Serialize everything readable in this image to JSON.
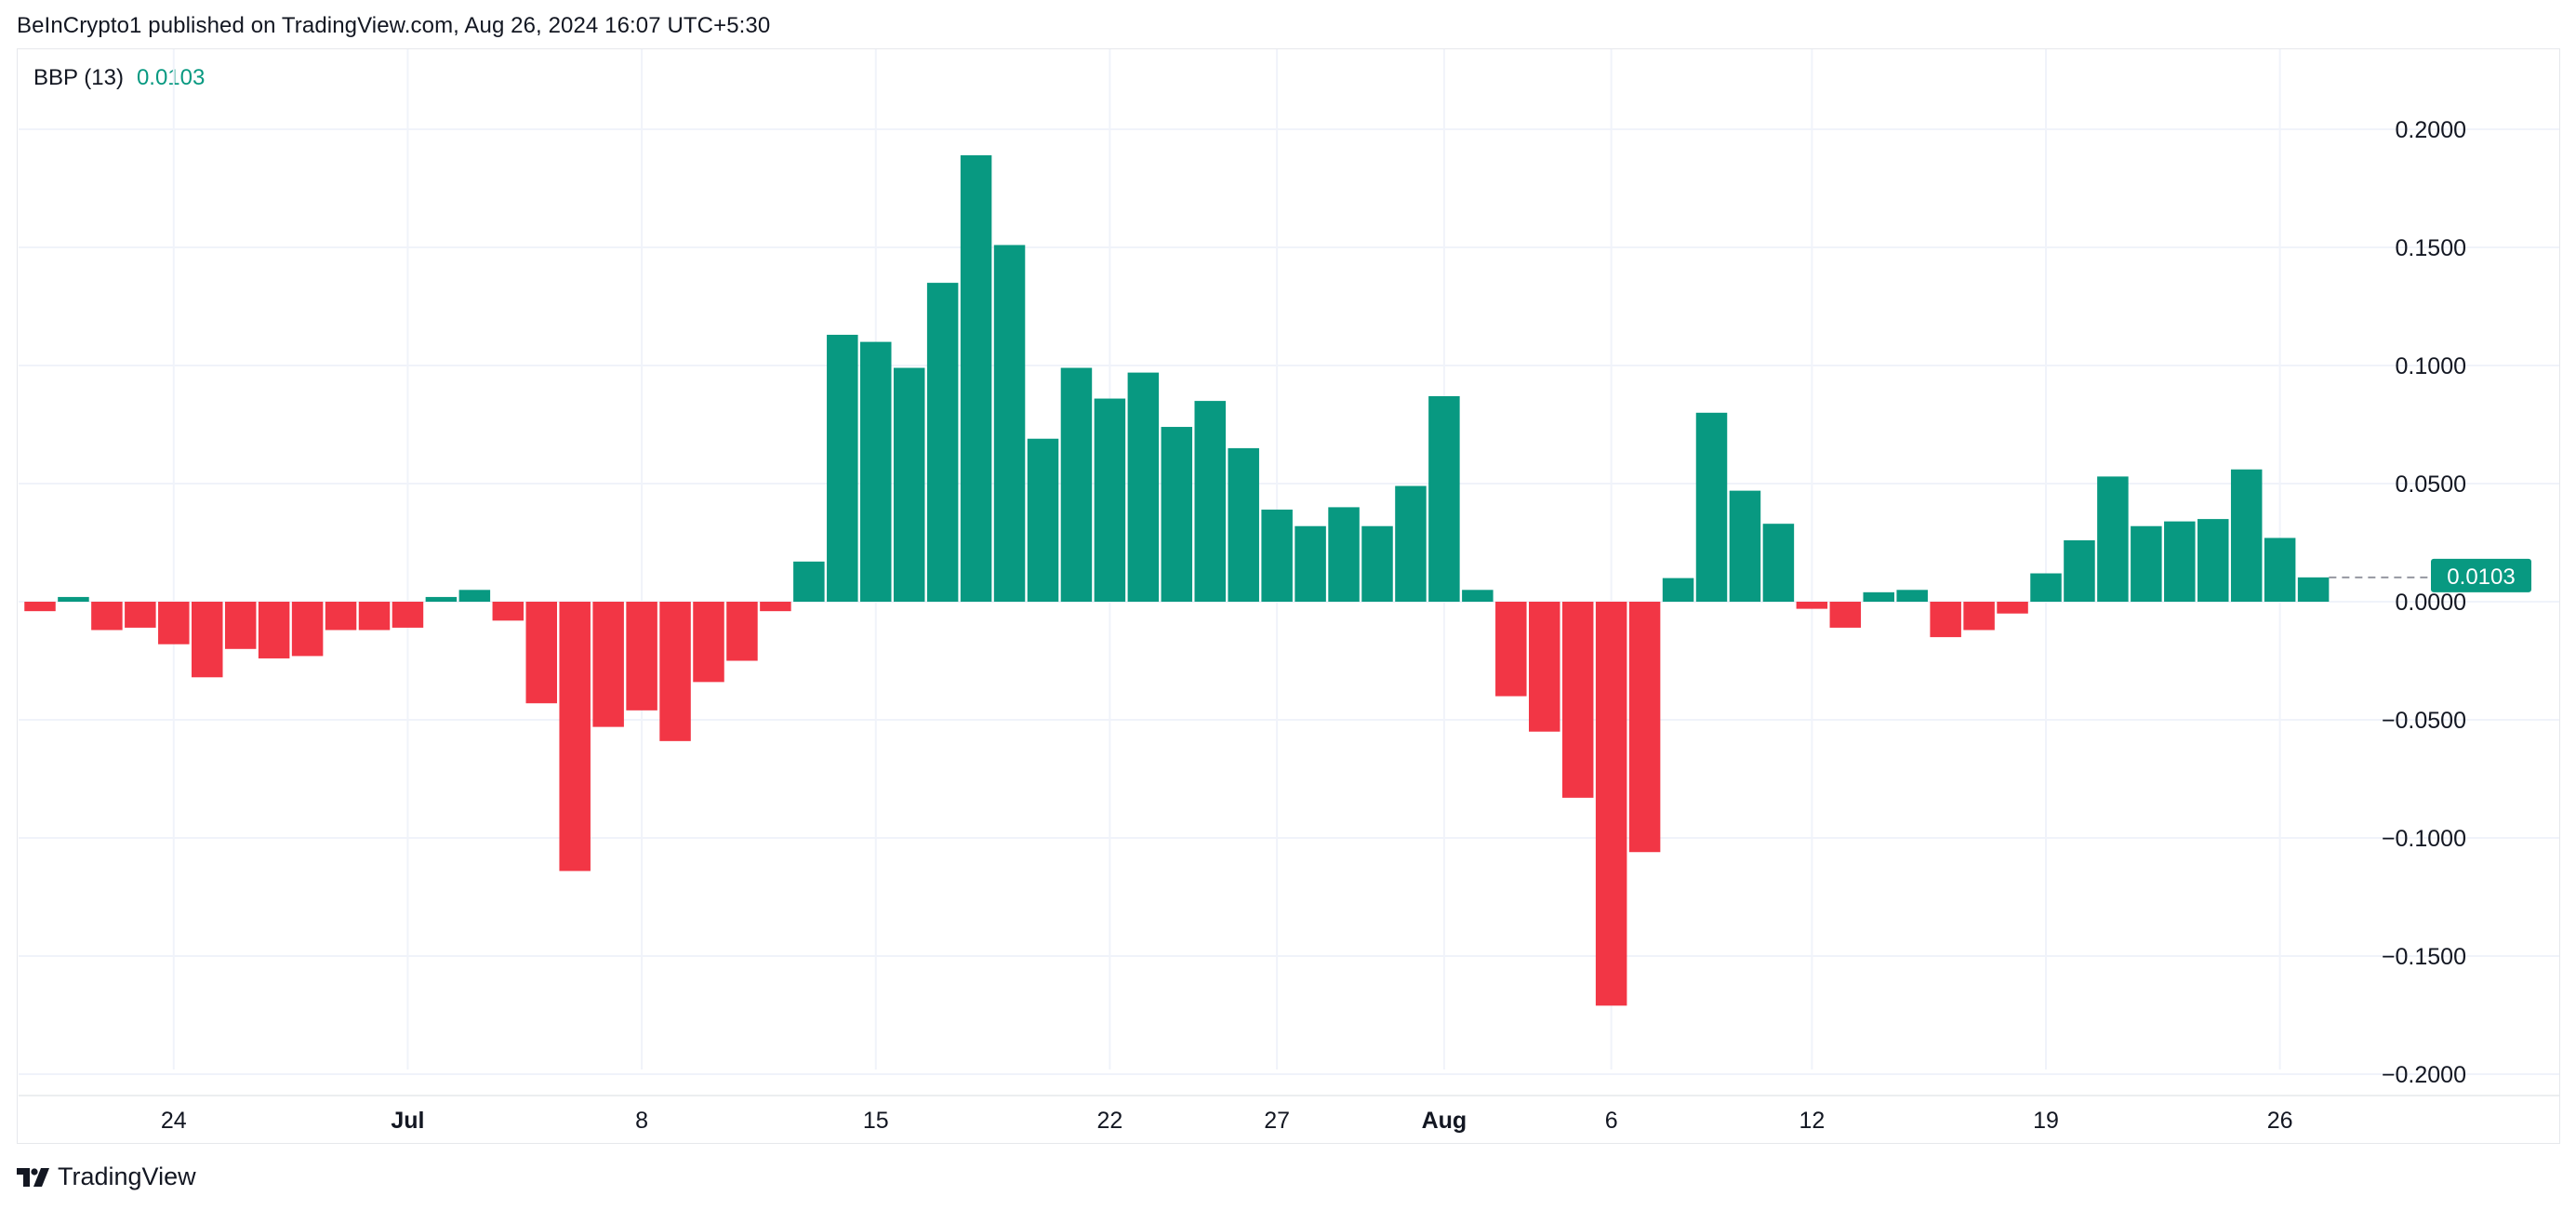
{
  "header": {
    "published": "BeInCrypto1 published on TradingView.com, Aug 26, 2024 16:07 UTC+5:30"
  },
  "indicator": {
    "name": "BBP (13)",
    "value": "0.0103",
    "last_label": "0.0103"
  },
  "footer": {
    "brand": "TradingView"
  },
  "colors": {
    "positive": "#089981",
    "negative": "#f23645",
    "grid": "#f0f3fa",
    "axis_text": "#131722"
  },
  "chart_data": {
    "type": "bar",
    "title": "BBP (13)",
    "ylim": [
      -0.2,
      0.2
    ],
    "yticks": [
      {
        "value": 0.2,
        "label": "0.2000"
      },
      {
        "value": 0.15,
        "label": "0.1500"
      },
      {
        "value": 0.1,
        "label": "0.1000"
      },
      {
        "value": 0.05,
        "label": "0.0500"
      },
      {
        "value": 0.0,
        "label": "0.0000"
      },
      {
        "value": -0.05,
        "label": "−0.0500"
      },
      {
        "value": -0.1,
        "label": "−0.1000"
      },
      {
        "value": -0.15,
        "label": "−0.1500"
      },
      {
        "value": -0.2,
        "label": "−0.2000"
      }
    ],
    "xticks": [
      {
        "index": 4,
        "label": "24",
        "bold": false
      },
      {
        "index": 11,
        "label": "Jul",
        "bold": true
      },
      {
        "index": 18,
        "label": "8",
        "bold": false
      },
      {
        "index": 25,
        "label": "15",
        "bold": false
      },
      {
        "index": 32,
        "label": "22",
        "bold": false
      },
      {
        "index": 37,
        "label": "27",
        "bold": false
      },
      {
        "index": 42,
        "label": "Aug",
        "bold": true
      },
      {
        "index": 47,
        "label": "6",
        "bold": false
      },
      {
        "index": 53,
        "label": "12",
        "bold": false
      },
      {
        "index": 60,
        "label": "19",
        "bold": false
      },
      {
        "index": 67,
        "label": "26",
        "bold": false
      }
    ],
    "values": [
      -0.004,
      0.002,
      -0.012,
      -0.011,
      -0.018,
      -0.032,
      -0.02,
      -0.024,
      -0.023,
      -0.012,
      -0.012,
      -0.011,
      0.002,
      0.005,
      -0.008,
      -0.043,
      -0.114,
      -0.053,
      -0.046,
      -0.059,
      -0.034,
      -0.025,
      -0.004,
      0.017,
      0.113,
      0.11,
      0.099,
      0.135,
      0.189,
      0.151,
      0.069,
      0.099,
      0.086,
      0.097,
      0.074,
      0.085,
      0.065,
      0.039,
      0.032,
      0.04,
      0.032,
      0.049,
      0.087,
      0.005,
      -0.04,
      -0.055,
      -0.083,
      -0.171,
      -0.106,
      0.01,
      0.08,
      0.047,
      0.033,
      -0.003,
      -0.011,
      0.004,
      0.005,
      -0.015,
      -0.012,
      -0.005,
      0.012,
      0.026,
      0.053,
      0.032,
      0.034,
      0.035,
      0.056,
      0.027,
      0.0103
    ]
  }
}
